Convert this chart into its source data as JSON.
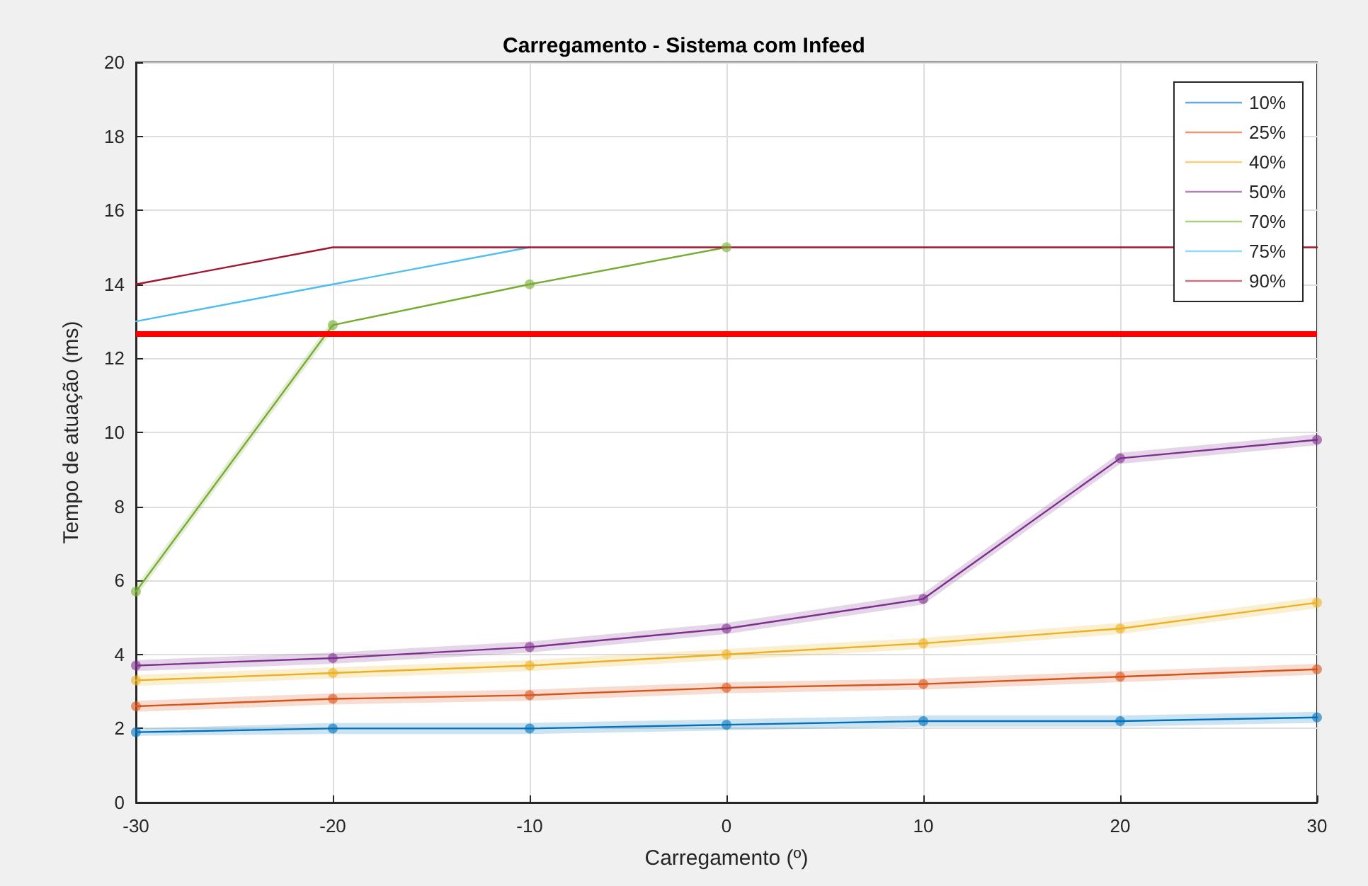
{
  "chart_data": {
    "type": "line",
    "title": "Carregamento - Sistema com Infeed",
    "xlabel": "Carregamento (º)",
    "ylabel": "Tempo de atuação (ms)",
    "x": [
      -30,
      -20,
      -10,
      0,
      10,
      20,
      30
    ],
    "xlim": [
      -30,
      30
    ],
    "xticks": [
      -30,
      -20,
      -10,
      0,
      10,
      20,
      30
    ],
    "ylim": [
      0,
      20
    ],
    "yticks": [
      0,
      2,
      4,
      6,
      8,
      10,
      12,
      14,
      16,
      18,
      20
    ],
    "grid": true,
    "legend": "top right",
    "series": [
      {
        "name": "10%",
        "color": "#0072bd",
        "marker": "circle",
        "values": [
          1.9,
          2.0,
          2.0,
          2.1,
          2.2,
          2.2,
          2.3
        ],
        "lower": [
          1.8,
          1.85,
          1.85,
          1.95,
          2.05,
          2.05,
          2.15
        ],
        "upper": [
          2.0,
          2.15,
          2.15,
          2.25,
          2.35,
          2.35,
          2.45
        ]
      },
      {
        "name": "25%",
        "color": "#d95319",
        "marker": "circle",
        "values": [
          2.6,
          2.8,
          2.9,
          3.1,
          3.2,
          3.4,
          3.6
        ],
        "lower": [
          2.45,
          2.65,
          2.75,
          2.95,
          3.05,
          3.25,
          3.45
        ],
        "upper": [
          2.75,
          2.95,
          3.05,
          3.25,
          3.35,
          3.55,
          3.75
        ]
      },
      {
        "name": "40%",
        "color": "#edb120",
        "marker": "circle",
        "values": [
          3.3,
          3.5,
          3.7,
          4.0,
          4.3,
          4.7,
          5.4
        ],
        "lower": [
          3.15,
          3.35,
          3.55,
          3.85,
          4.15,
          4.55,
          5.25
        ],
        "upper": [
          3.45,
          3.65,
          3.85,
          4.15,
          4.45,
          4.85,
          5.55
        ]
      },
      {
        "name": "50%",
        "color": "#7e2f8e",
        "marker": "circle",
        "values": [
          3.7,
          3.9,
          4.2,
          4.7,
          5.5,
          9.3,
          9.8
        ],
        "lower": [
          3.55,
          3.75,
          4.05,
          4.55,
          5.35,
          9.15,
          9.65
        ],
        "upper": [
          3.85,
          4.05,
          4.35,
          4.85,
          5.65,
          9.45,
          9.95
        ]
      },
      {
        "name": "70%",
        "color": "#77ac30",
        "marker": "circle",
        "values": [
          5.7,
          12.9,
          14,
          15,
          null,
          null,
          null
        ],
        "lower": [
          5.55,
          12.75,
          null,
          null,
          null,
          null,
          null
        ],
        "upper": [
          5.85,
          13.05,
          null,
          null,
          null,
          null,
          null
        ]
      },
      {
        "name": "75%",
        "color": "#4dbeee",
        "marker": "none",
        "values": [
          13,
          14,
          15,
          null,
          null,
          null,
          null
        ]
      },
      {
        "name": "90%",
        "color": "#a2142f",
        "marker": "none",
        "values": [
          14,
          15,
          15,
          15,
          15,
          15,
          15
        ]
      }
    ],
    "ref_lines": [
      {
        "axis": "y",
        "value": 12.65,
        "color": "#ff0000",
        "line_style": "solid"
      }
    ]
  }
}
